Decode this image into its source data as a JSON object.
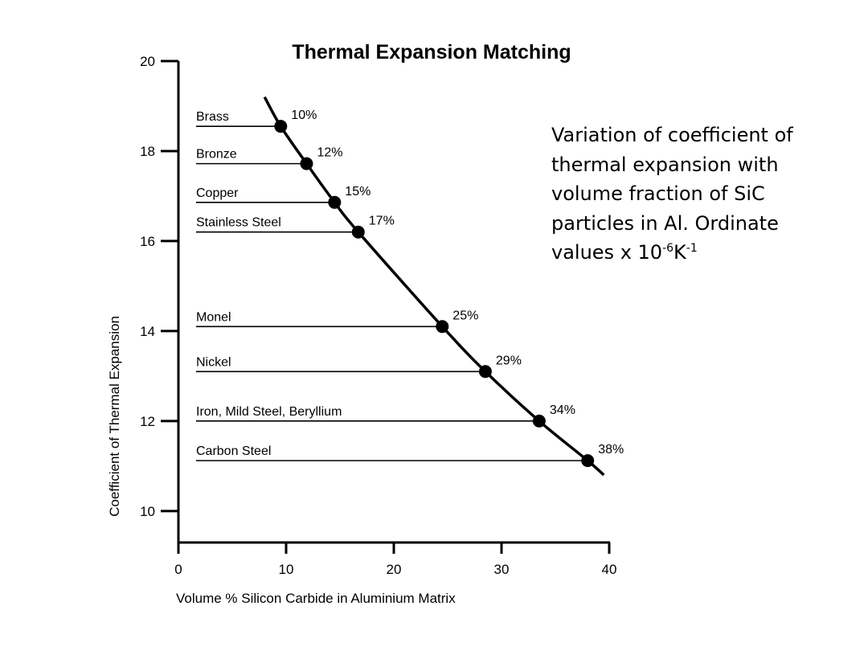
{
  "chart_data": {
    "type": "line",
    "title": "Thermal Expansion Matching",
    "xlabel": "Volume % Silicon Carbide in Aluminium Matrix",
    "ylabel": "Coefficient of Thermal Expansion",
    "xlim": [
      0,
      40
    ],
    "ylim": [
      9.3,
      20
    ],
    "x_ticks": [
      0,
      10,
      20,
      30,
      40
    ],
    "y_ticks": [
      10,
      12,
      14,
      16,
      18,
      20
    ],
    "grid": false,
    "curve": {
      "x": [
        8,
        9.5,
        11.9,
        14.5,
        16.7,
        24.5,
        28.5,
        33.5,
        38,
        39.5
      ],
      "y": [
        19.2,
        18.55,
        17.72,
        16.86,
        16.2,
        14.1,
        13.1,
        12.0,
        11.12,
        10.8
      ]
    },
    "points": [
      {
        "material": "Brass",
        "label": "10%",
        "x": 9.5,
        "y": 18.55
      },
      {
        "material": "Bronze",
        "label": "12%",
        "x": 11.9,
        "y": 17.72
      },
      {
        "material": "Copper",
        "label": "15%",
        "x": 14.5,
        "y": 16.86
      },
      {
        "material": "Stainless Steel",
        "label": "17%",
        "x": 16.7,
        "y": 16.2
      },
      {
        "material": "Monel",
        "label": "25%",
        "x": 24.5,
        "y": 14.1
      },
      {
        "material": "Nickel",
        "label": "29%",
        "x": 28.5,
        "y": 13.1
      },
      {
        "material": "Iron, Mild Steel, Beryllium",
        "label": "34%",
        "x": 33.5,
        "y": 12.0
      },
      {
        "material": "Carbon Steel",
        "label": "38%",
        "x": 38,
        "y": 11.12
      }
    ]
  },
  "caption": {
    "line1": "Variation of coefficient of",
    "line2": "thermal expansion with",
    "line3": "volume fraction of SiC",
    "line4": "particles in Al. Ordinate",
    "line5_prefix": "values x 10",
    "exp1": "-6",
    "unit": "K",
    "exp2": "-1"
  }
}
